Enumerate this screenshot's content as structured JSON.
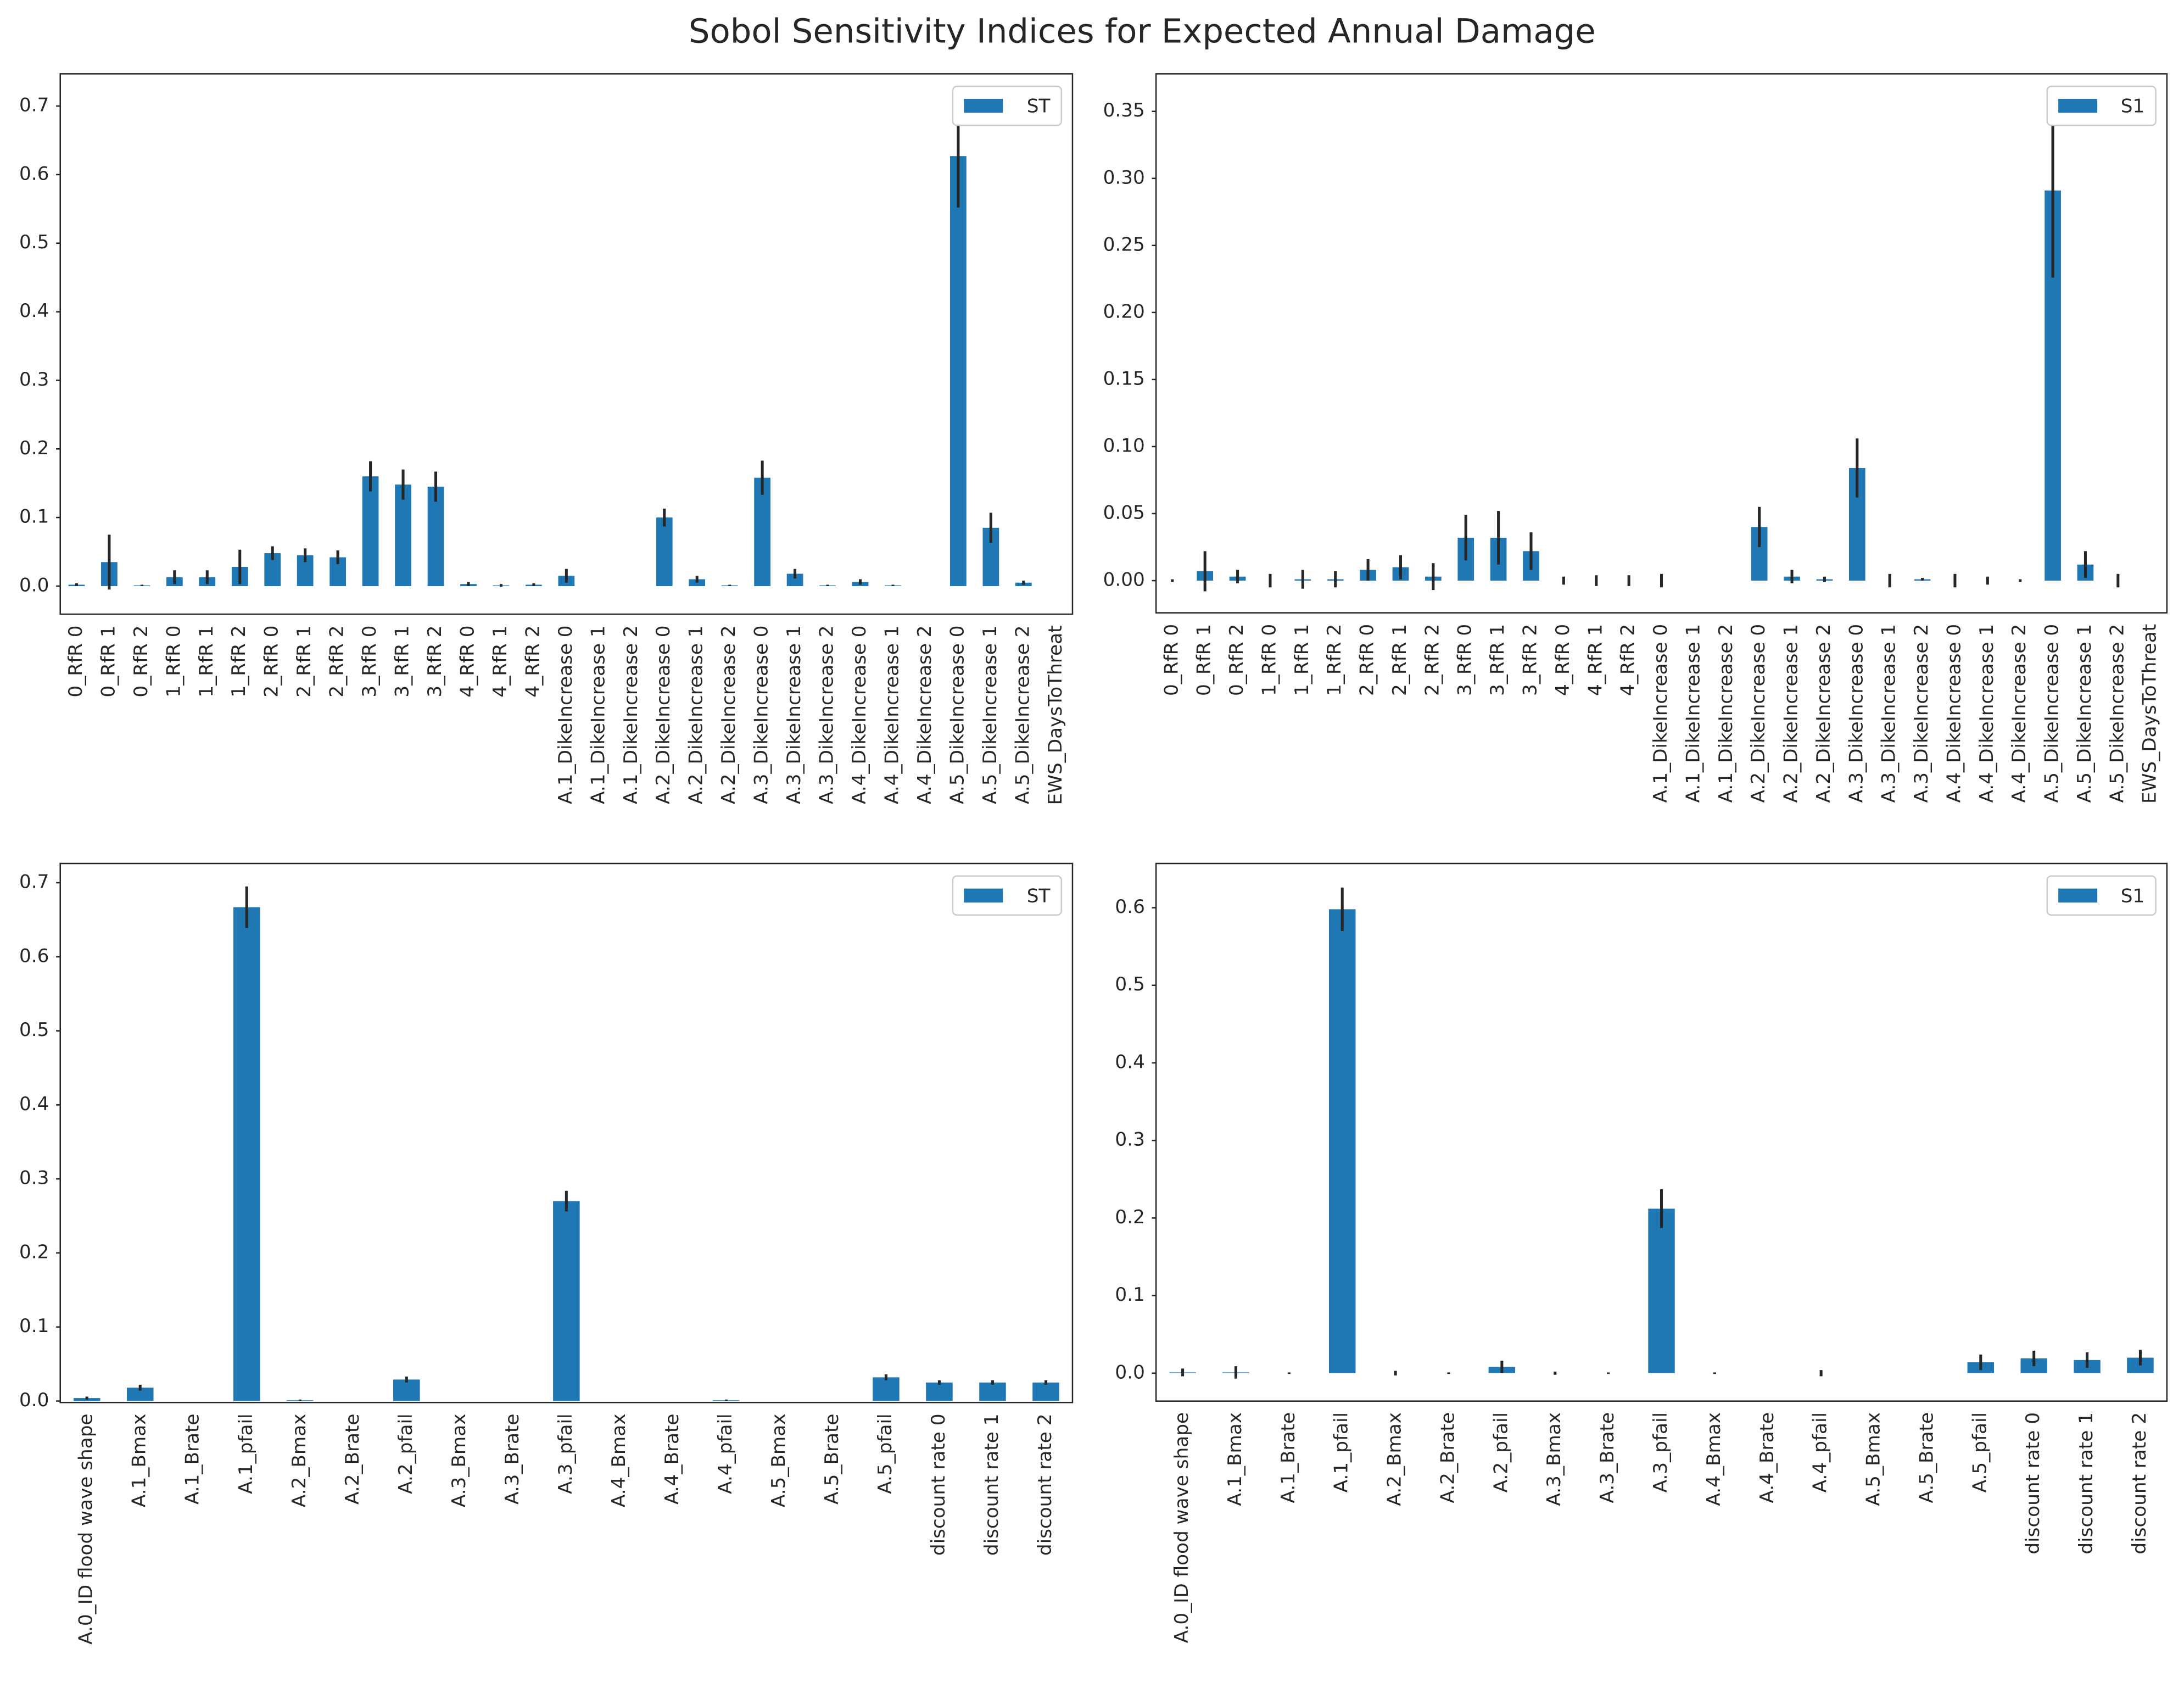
{
  "title": "Sobol Sensitivity Indices for Expected Annual Damage",
  "chart_data": [
    {
      "type": "bar",
      "categories": [
        "0_RfR 0",
        "0_RfR 1",
        "0_RfR 2",
        "1_RfR 0",
        "1_RfR 1",
        "1_RfR 2",
        "2_RfR 0",
        "2_RfR 1",
        "2_RfR 2",
        "3_RfR 0",
        "3_RfR 1",
        "3_RfR 2",
        "4_RfR 0",
        "4_RfR 1",
        "4_RfR 2",
        "A.1_DikeIncrease 0",
        "A.1_DikeIncrease 1",
        "A.1_DikeIncrease 2",
        "A.2_DikeIncrease 0",
        "A.2_DikeIncrease 1",
        "A.2_DikeIncrease 2",
        "A.3_DikeIncrease 0",
        "A.3_DikeIncrease 1",
        "A.3_DikeIncrease 2",
        "A.4_DikeIncrease 0",
        "A.4_DikeIncrease 1",
        "A.4_DikeIncrease 2",
        "A.5_DikeIncrease 0",
        "A.5_DikeIncrease 1",
        "A.5_DikeIncrease 2",
        "EWS_DaysToThreat"
      ],
      "series": [
        {
          "name": "ST",
          "color": "#1f77b4",
          "values": [
            0.002,
            0.035,
            0.001,
            0.013,
            0.013,
            0.028,
            0.048,
            0.045,
            0.042,
            0.16,
            0.148,
            0.145,
            0.003,
            0.001,
            0.002,
            0.015,
            0,
            0,
            0.1,
            0.01,
            0.001,
            0.158,
            0.018,
            0.001,
            0.006,
            0.001,
            0,
            0.627,
            0.085,
            0.005,
            0
          ],
          "errors": [
            0.002,
            0.04,
            0.001,
            0.01,
            0.01,
            0.025,
            0.01,
            0.01,
            0.01,
            0.022,
            0.022,
            0.022,
            0.003,
            0.002,
            0.002,
            0.01,
            0,
            0,
            0.013,
            0.005,
            0.001,
            0.025,
            0.007,
            0.001,
            0.004,
            0.001,
            0,
            0.075,
            0.022,
            0.003,
            0
          ]
        }
      ],
      "ylim": [
        -0.041,
        0.747
      ],
      "yticks": [
        {
          "value": 0,
          "label": "0.0"
        },
        0.1,
        0.2,
        0.3,
        0.4,
        0.5,
        0.6,
        0.7
      ],
      "grid": false,
      "legend": "upper right"
    },
    {
      "type": "bar",
      "categories": [
        "0_RfR 0",
        "0_RfR 1",
        "0_RfR 2",
        "1_RfR 0",
        "1_RfR 1",
        "1_RfR 2",
        "2_RfR 0",
        "2_RfR 1",
        "2_RfR 2",
        "3_RfR 0",
        "3_RfR 1",
        "3_RfR 2",
        "4_RfR 0",
        "4_RfR 1",
        "4_RfR 2",
        "A.1_DikeIncrease 0",
        "A.1_DikeIncrease 1",
        "A.1_DikeIncrease 2",
        "A.2_DikeIncrease 0",
        "A.2_DikeIncrease 1",
        "A.2_DikeIncrease 2",
        "A.3_DikeIncrease 0",
        "A.3_DikeIncrease 1",
        "A.3_DikeIncrease 2",
        "A.4_DikeIncrease 0",
        "A.4_DikeIncrease 1",
        "A.4_DikeIncrease 2",
        "A.5_DikeIncrease 0",
        "A.5_DikeIncrease 1",
        "A.5_DikeIncrease 2",
        "EWS_DaysToThreat"
      ],
      "series": [
        {
          "name": "S1",
          "color": "#1f77b4",
          "values": [
            0,
            0.007,
            0.003,
            0,
            0.001,
            0.001,
            0.008,
            0.01,
            0.003,
            0.032,
            0.032,
            0.022,
            0,
            0,
            0,
            0,
            0,
            0,
            0.04,
            0.003,
            0.001,
            0.084,
            0,
            0.001,
            0,
            0,
            0,
            0.291,
            0.012,
            0,
            0
          ],
          "errors": [
            0.001,
            0.015,
            0.005,
            0.005,
            0.007,
            0.006,
            0.008,
            0.009,
            0.01,
            0.017,
            0.02,
            0.014,
            0.003,
            0.004,
            0.004,
            0.005,
            0,
            0,
            0.015,
            0.005,
            0.002,
            0.022,
            0.005,
            0.001,
            0.005,
            0.003,
            0.001,
            0.065,
            0.01,
            0.005,
            0
          ]
        }
      ],
      "ylim": [
        -0.024,
        0.378
      ],
      "yticks": [
        {
          "value": 0,
          "label": "0.00"
        },
        0.05,
        {
          "value": 0.1,
          "label": "0.10"
        },
        0.15,
        {
          "value": 0.2,
          "label": "0.20"
        },
        0.25,
        {
          "value": 0.3,
          "label": "0.30"
        },
        0.35
      ],
      "grid": false,
      "legend": "upper right"
    },
    {
      "type": "bar",
      "categories": [
        "A.0_ID flood wave shape",
        "A.1_Bmax",
        "A.1_Brate",
        "A.1_pfail",
        "A.2_Bmax",
        "A.2_Brate",
        "A.2_pfail",
        "A.3_Bmax",
        "A.3_Brate",
        "A.3_pfail",
        "A.4_Bmax",
        "A.4_Brate",
        "A.4_pfail",
        "A.5_Bmax",
        "A.5_Brate",
        "A.5_pfail",
        "discount rate 0",
        "discount rate 1",
        "discount rate 2"
      ],
      "series": [
        {
          "name": "ST",
          "color": "#1f77b4",
          "values": [
            0.004,
            0.018,
            0,
            0.667,
            0.001,
            0,
            0.029,
            0,
            0,
            0.27,
            0,
            0,
            0.001,
            0,
            0,
            0.032,
            0.025,
            0.025,
            0.025
          ],
          "errors": [
            0.002,
            0.004,
            0,
            0.028,
            0.001,
            0,
            0.004,
            0,
            0,
            0.014,
            0,
            0,
            0.001,
            0,
            0,
            0.004,
            0.003,
            0.003,
            0.003
          ]
        }
      ],
      "ylim": [
        -0.002,
        0.726
      ],
      "yticks": [
        {
          "value": 0,
          "label": "0.0"
        },
        0.1,
        0.2,
        0.3,
        0.4,
        0.5,
        0.6,
        0.7
      ],
      "grid": false,
      "legend": "upper right"
    },
    {
      "type": "bar",
      "categories": [
        "A.0_ID flood wave shape",
        "A.1_Bmax",
        "A.1_Brate",
        "A.1_pfail",
        "A.2_Bmax",
        "A.2_Brate",
        "A.2_pfail",
        "A.3_Bmax",
        "A.3_Brate",
        "A.3_pfail",
        "A.4_Bmax",
        "A.4_Brate",
        "A.4_pfail",
        "A.5_Bmax",
        "A.5_Brate",
        "A.5_pfail",
        "discount rate 0",
        "discount rate 1",
        "discount rate 2"
      ],
      "series": [
        {
          "name": "S1",
          "color": "#1f77b4",
          "values": [
            0.001,
            0.001,
            0,
            0.598,
            0,
            0,
            0.008,
            0,
            0,
            0.212,
            0,
            0,
            0,
            0,
            0,
            0.014,
            0.019,
            0.017,
            0.02
          ],
          "errors": [
            0.005,
            0.008,
            0.001,
            0.028,
            0.003,
            0.001,
            0.008,
            0.002,
            0.001,
            0.025,
            0.001,
            0,
            0.004,
            0,
            0,
            0.01,
            0.01,
            0.01,
            0.01
          ]
        }
      ],
      "ylim": [
        -0.036,
        0.657
      ],
      "yticks": [
        {
          "value": 0,
          "label": "0.0"
        },
        0.1,
        0.2,
        0.3,
        0.4,
        0.5,
        0.6
      ],
      "grid": false,
      "legend": "upper right"
    }
  ]
}
